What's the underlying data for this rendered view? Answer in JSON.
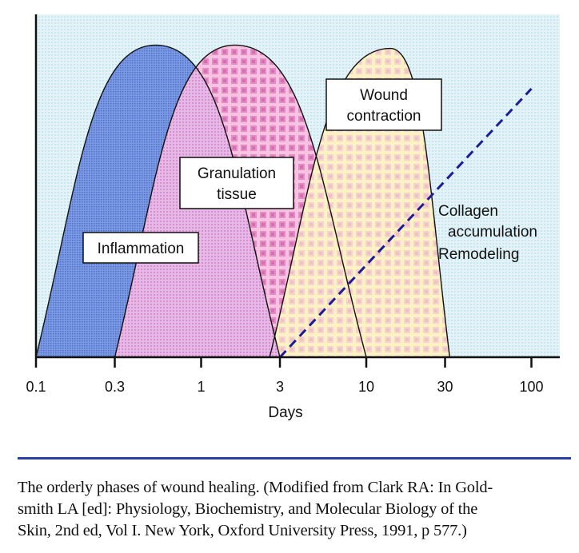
{
  "chart_data": {
    "type": "area",
    "xscale": "log",
    "xlabel": "Days",
    "ylabel": "",
    "xlim": [
      0.1,
      130
    ],
    "x_ticks": [
      0.1,
      0.3,
      1,
      3,
      10,
      30,
      100
    ],
    "x_tick_labels": [
      "0.1",
      "0.3",
      "1",
      "3",
      "10",
      "30",
      "100"
    ],
    "grid": false,
    "series": [
      {
        "name": "Inflammation",
        "label_lines": [
          "Inflammation"
        ],
        "start": 0.1,
        "peak": 0.53,
        "end": 3,
        "peak_level": 0.93,
        "color": "#6f8fe0"
      },
      {
        "name": "Granulation tissue",
        "label_lines": [
          "Granulation",
          "tissue"
        ],
        "start": 0.3,
        "peak": 1.6,
        "end": 10,
        "peak_level": 0.93,
        "color": "#f2a6d6"
      },
      {
        "name": "Wound contraction",
        "label_lines": [
          "Wound",
          "contraction"
        ],
        "start": 2.6,
        "peak": 14,
        "end": 32,
        "peak_level": 0.92,
        "color": "#fbe7b8"
      },
      {
        "name": "Collagen accumulation Remodeling",
        "label_lines": [
          "Collagen",
          "accumulation",
          "Remodeling"
        ],
        "type": "dashed-line",
        "x": [
          3,
          100
        ],
        "y": [
          0,
          0.8
        ],
        "color": "#1c1c96"
      }
    ]
  },
  "caption": "The orderly phases of wound healing. (Modified from Clark RA: In Goldsmith LA [ed]: Physiology, Biochemistry, and Molecular Biology of the Skin, 2nd ed, Vol I. New York, Oxford University Press, 1991, p 577.)",
  "caption_lines": [
    "The orderly phases of wound healing. (Modified from Clark RA: In Gold-",
    "smith LA [ed]: Physiology, Biochemistry, and Molecular Biology of the",
    "Skin, 2nd ed, Vol I. New York, Oxford University Press, 1991, p 577.)"
  ],
  "colors": {
    "background": "#dff1f6",
    "rule": "#2a3ea8"
  }
}
